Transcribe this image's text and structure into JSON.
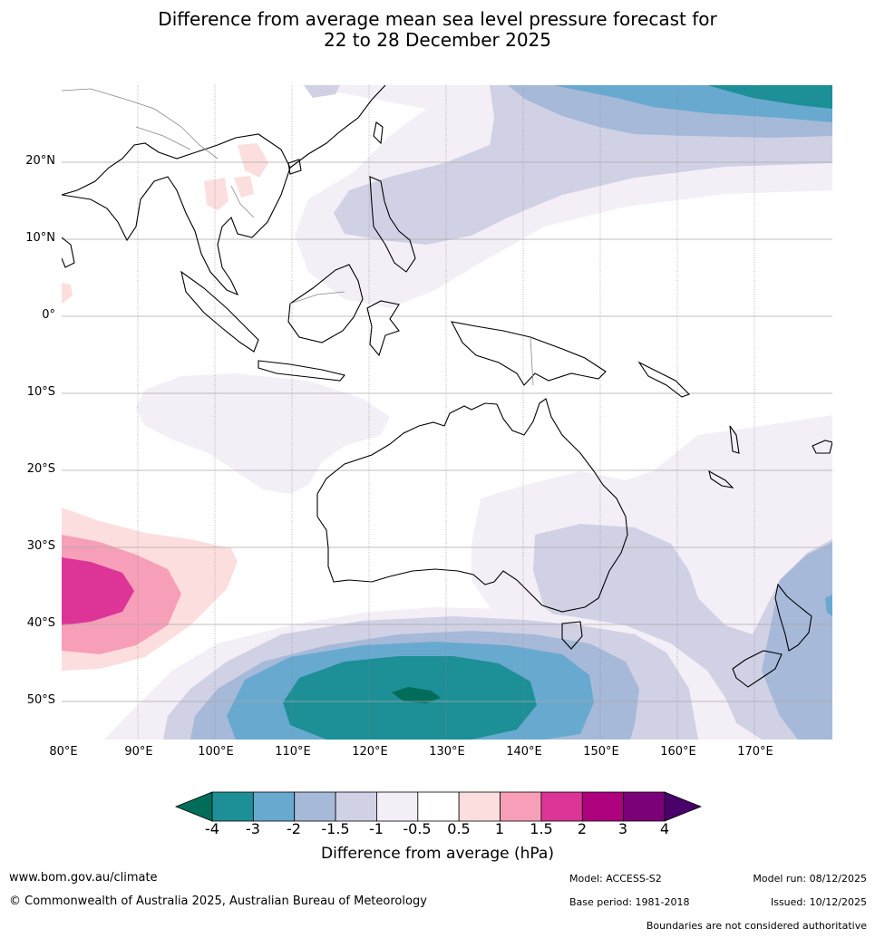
{
  "title": {
    "line1": "Difference from average mean sea level pressure forecast for",
    "line2": "22 to 28 December 2025"
  },
  "map": {
    "lat_ticks": [
      "20°N",
      "10°N",
      "0°",
      "10°S",
      "20°S",
      "30°S",
      "40°S",
      "50°S"
    ],
    "lon_ticks": [
      "80°E",
      "90°E",
      "100°E",
      "110°E",
      "120°E",
      "130°E",
      "140°E",
      "150°E",
      "160°E",
      "170°E"
    ],
    "lon_range_deg": [
      80,
      180
    ],
    "lat_range_deg": [
      -55,
      30
    ]
  },
  "legend": {
    "title": "Difference from average (hPa)",
    "labels": [
      "-4",
      "-3",
      "-2",
      "-1.5",
      "-1",
      "-0.5",
      "0.5",
      "1",
      "1.5",
      "2",
      "3",
      "4"
    ],
    "colors": [
      "#1d8f96",
      "#68a9cf",
      "#a6b9d8",
      "#d1d1e5",
      "#f4eef7",
      "#ffffff",
      "#fddede",
      "#f79fb8",
      "#dd3497",
      "#ae017e",
      "#7a0177"
    ],
    "low_extend_color": "#006d5b",
    "high_extend_color": "#49006a"
  },
  "footer": {
    "url": "www.bom.gov.au/climate",
    "copyright": "© Commonwealth of Australia 2025, Australian Bureau of Meteorology",
    "model": "Model: ACCESS-S2",
    "base_period": "Base period: 1981-2018",
    "model_run": "Model run: 08/12/2025",
    "issued": "Issued: 10/12/2025",
    "disclaimer": "Boundaries are not considered authoritative"
  }
}
